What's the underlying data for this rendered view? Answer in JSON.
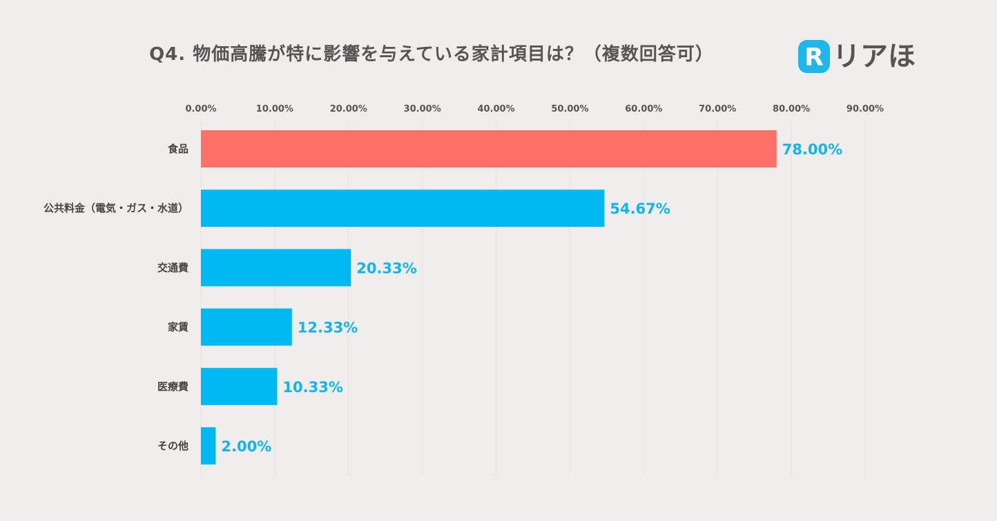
{
  "brand": {
    "name": "リアほ",
    "mark_letter": "R",
    "mark_color": "#1fb6ea"
  },
  "chart_data": {
    "type": "bar",
    "orientation": "horizontal",
    "title": "Q4. 物価高騰が特に影響を与えている家計項目は？（複数回答可）",
    "categories": [
      "食品",
      "公共料金（電気・ガス・水道）",
      "交通費",
      "家賃",
      "医療費",
      "その他"
    ],
    "values": [
      78.0,
      54.67,
      20.33,
      12.33,
      10.33,
      2.0
    ],
    "value_labels": [
      "78.00%",
      "54.67%",
      "20.33%",
      "12.33%",
      "10.33%",
      "2.00%"
    ],
    "xlim": [
      0,
      90
    ],
    "xticks": [
      0,
      10,
      20,
      30,
      40,
      50,
      60,
      70,
      80,
      90
    ],
    "xtick_labels": [
      "0.00%",
      "10.00%",
      "20.00%",
      "30.00%",
      "40.00%",
      "50.00%",
      "60.00%",
      "70.00%",
      "80.00%",
      "90.00%"
    ],
    "xaxis_position": "top",
    "grid": true,
    "legend": false,
    "colors": {
      "highlight_bar": "#ff7069",
      "bar": "#00b9f2",
      "data_label": "#12b4ec",
      "grid": "#e2e1df",
      "background": "#efeeed"
    },
    "highlight_index": 0
  }
}
